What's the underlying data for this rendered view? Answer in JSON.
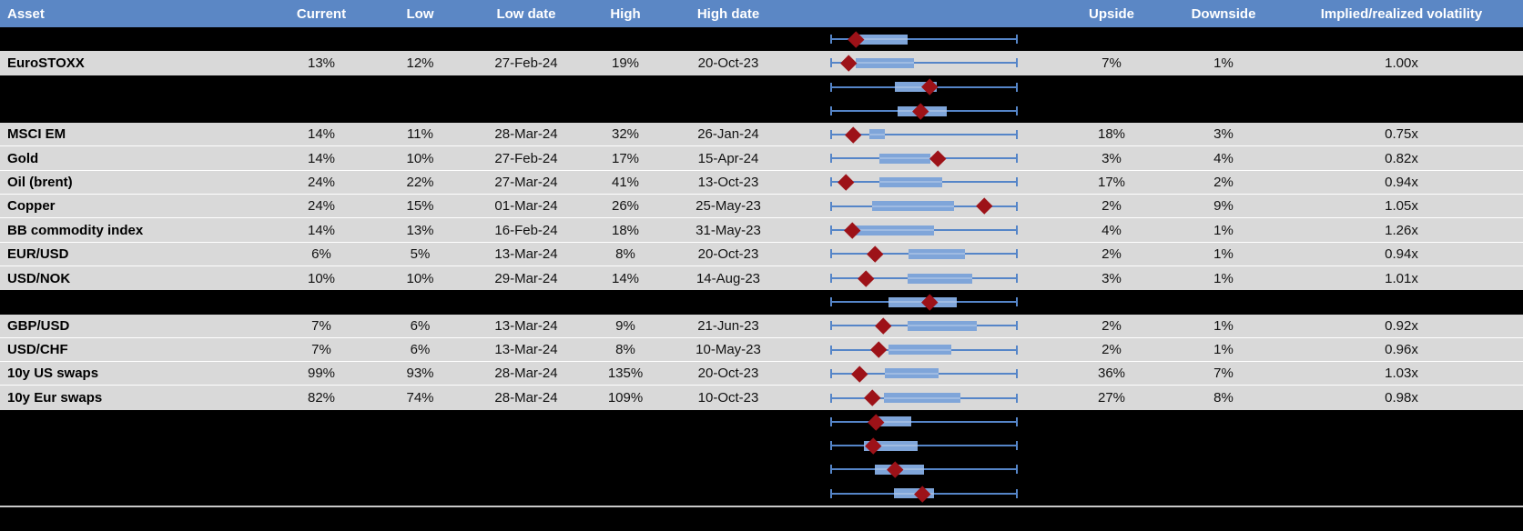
{
  "colors": {
    "header_bg": "#5b87c5",
    "header_text": "#ffffff",
    "row_bg": "#d9d9d9",
    "hidden_row_bg": "#000000",
    "text": "#111111",
    "whisker": "#5585c8",
    "box_fill": "#7fa5d9",
    "marker": "#9d1218",
    "divider": "#c9c9c9",
    "grid_line": "#ffffff"
  },
  "chart_data": {
    "type": "table",
    "columns": [
      "Asset",
      "Current",
      "Low",
      "Low date",
      "High",
      "High date",
      "",
      "Upside",
      "Downside",
      "Implied/realized volatility"
    ],
    "range_axis": {
      "min": 0,
      "max": 1
    },
    "rows": [
      {
        "type": "hidden",
        "range": {
          "box_start": 0.151,
          "box_end": 0.412,
          "marker": 0.138
        }
      },
      {
        "type": "data",
        "asset": "EuroSTOXX",
        "current": "13%",
        "low": "12%",
        "low_date": "27-Feb-24",
        "high": "19%",
        "high_date": "20-Oct-23",
        "upside": "7%",
        "downside": "1%",
        "vol": "1.00x",
        "range": {
          "box_start": 0.134,
          "box_end": 0.447,
          "marker": 0.099
        }
      },
      {
        "type": "hidden",
        "range": {
          "box_start": 0.346,
          "box_end": 0.571,
          "marker": 0.535
        }
      },
      {
        "type": "hidden",
        "range": {
          "box_start": 0.359,
          "box_end": 0.623,
          "marker": 0.483
        }
      },
      {
        "type": "data",
        "asset": "MSCI EM",
        "current": "14%",
        "low": "11%",
        "low_date": "28-Mar-24",
        "high": "32%",
        "high_date": "26-Jan-24",
        "upside": "18%",
        "downside": "3%",
        "vol": "0.75x",
        "range": {
          "box_start": 0.209,
          "box_end": 0.294,
          "marker": 0.123
        }
      },
      {
        "type": "data",
        "asset": "Gold",
        "current": "14%",
        "low": "10%",
        "low_date": "27-Feb-24",
        "high": "17%",
        "high_date": "15-Apr-24",
        "upside": "3%",
        "downside": "4%",
        "vol": "0.82x",
        "range": {
          "box_start": 0.265,
          "box_end": 0.539,
          "marker": 0.578
        }
      },
      {
        "type": "data",
        "asset": "Oil (brent)",
        "current": "24%",
        "low": "22%",
        "low_date": "27-Mar-24",
        "high": "41%",
        "high_date": "13-Oct-23",
        "upside": "17%",
        "downside": "2%",
        "vol": "0.94x",
        "range": {
          "box_start": 0.265,
          "box_end": 0.599,
          "marker": 0.086
        }
      },
      {
        "type": "data",
        "asset": "Copper",
        "current": "24%",
        "low": "15%",
        "low_date": "01-Mar-24",
        "high": "26%",
        "high_date": "25-May-23",
        "upside": "2%",
        "downside": "9%",
        "vol": "1.05x",
        "range": {
          "box_start": 0.224,
          "box_end": 0.664,
          "marker": 0.827
        }
      },
      {
        "type": "data",
        "asset": "BB commodity index",
        "current": "14%",
        "low": "13%",
        "low_date": "16-Feb-24",
        "high": "18%",
        "high_date": "31-May-23",
        "upside": "4%",
        "downside": "1%",
        "vol": "1.26x",
        "range": {
          "box_start": 0.134,
          "box_end": 0.558,
          "marker": 0.118
        }
      },
      {
        "type": "data",
        "asset": "EUR/USD",
        "current": "6%",
        "low": "5%",
        "low_date": "13-Mar-24",
        "high": "8%",
        "high_date": "20-Oct-23",
        "upside": "2%",
        "downside": "1%",
        "vol": "0.94x",
        "range": {
          "box_start": 0.42,
          "box_end": 0.721,
          "marker": 0.241
        }
      },
      {
        "type": "data",
        "asset": "USD/NOK",
        "current": "10%",
        "low": "10%",
        "low_date": "29-Mar-24",
        "high": "14%",
        "high_date": "14-Aug-23",
        "upside": "3%",
        "downside": "1%",
        "vol": "1.01x",
        "range": {
          "box_start": 0.415,
          "box_end": 0.762,
          "marker": 0.192
        }
      },
      {
        "type": "hidden",
        "range": {
          "box_start": 0.311,
          "box_end": 0.677,
          "marker": 0.534
        }
      },
      {
        "type": "data",
        "asset": "GBP/USD",
        "current": "7%",
        "low": "6%",
        "low_date": "13-Mar-24",
        "high": "9%",
        "high_date": "21-Jun-23",
        "upside": "2%",
        "downside": "1%",
        "vol": "0.92x",
        "range": {
          "box_start": 0.412,
          "box_end": 0.786,
          "marker": 0.286
        }
      },
      {
        "type": "data",
        "asset": "USD/CHF",
        "current": "7%",
        "low": "6%",
        "low_date": "13-Mar-24",
        "high": "8%",
        "high_date": "10-May-23",
        "upside": "2%",
        "downside": "1%",
        "vol": "0.96x",
        "range": {
          "box_start": 0.314,
          "box_end": 0.648,
          "marker": 0.262
        }
      },
      {
        "type": "data",
        "asset": "10y US swaps",
        "current": "99%",
        "low": "93%",
        "low_date": "28-Mar-24",
        "high": "135%",
        "high_date": "20-Oct-23",
        "upside": "36%",
        "downside": "7%",
        "vol": "1.03x",
        "range": {
          "box_start": 0.294,
          "box_end": 0.583,
          "marker": 0.159
        }
      },
      {
        "type": "data",
        "asset": "10y Eur swaps",
        "current": "82%",
        "low": "74%",
        "low_date": "28-Mar-24",
        "high": "109%",
        "high_date": "10-Oct-23",
        "upside": "27%",
        "downside": "8%",
        "vol": "0.98x",
        "range": {
          "box_start": 0.289,
          "box_end": 0.697,
          "marker": 0.224
        }
      },
      {
        "type": "hidden",
        "range": {
          "box_start": 0.257,
          "box_end": 0.436,
          "marker": 0.245
        }
      },
      {
        "type": "hidden",
        "range": {
          "box_start": 0.18,
          "box_end": 0.469,
          "marker": 0.229
        }
      },
      {
        "type": "hidden",
        "range": {
          "box_start": 0.241,
          "box_end": 0.501,
          "marker": 0.346
        }
      },
      {
        "type": "hidden",
        "range": {
          "box_start": 0.343,
          "box_end": 0.556,
          "marker": 0.493
        }
      }
    ]
  }
}
